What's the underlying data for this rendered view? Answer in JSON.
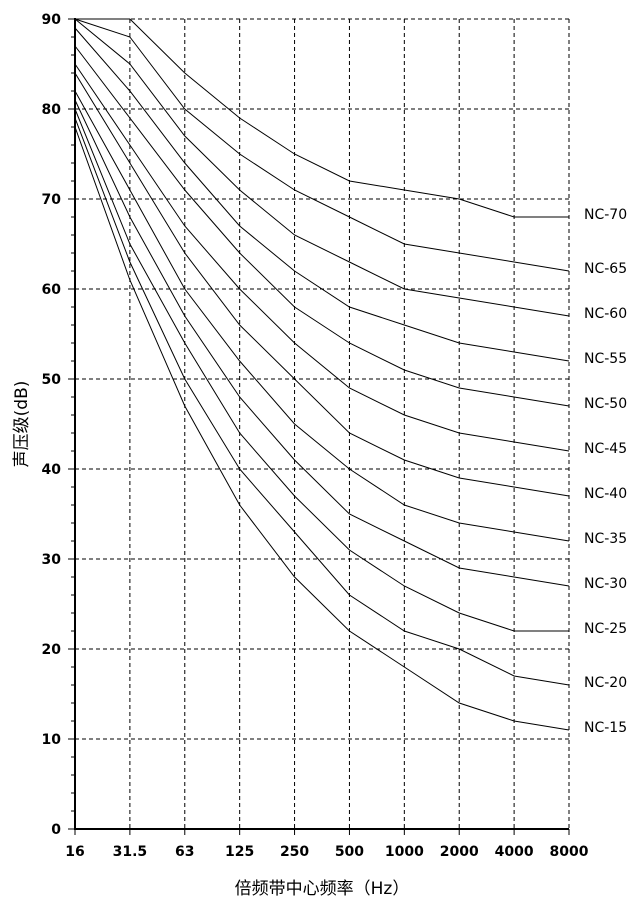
{
  "chart_data": {
    "type": "line",
    "xlabel": "倍频带中心频率（Hz）",
    "ylabel": "声压级(dB)",
    "categories": [
      "16",
      "31.5",
      "63",
      "125",
      "250",
      "500",
      "1000",
      "2000",
      "4000",
      "8000"
    ],
    "ylim": [
      0,
      90
    ],
    "yticks": [
      0,
      10,
      20,
      30,
      40,
      50,
      60,
      70,
      80,
      90
    ],
    "grid": true,
    "series": [
      {
        "name": "NC-70",
        "values": [
          90,
          90,
          84,
          79,
          75,
          72,
          71,
          70,
          68,
          68
        ]
      },
      {
        "name": "NC-65",
        "values": [
          90,
          88,
          80,
          75,
          71,
          68,
          65,
          64,
          63,
          62
        ]
      },
      {
        "name": "NC-60",
        "values": [
          90,
          85,
          77,
          71,
          66,
          63,
          60,
          59,
          58,
          57
        ]
      },
      {
        "name": "NC-55",
        "values": [
          89,
          82,
          74,
          67,
          62,
          58,
          56,
          54,
          53,
          52
        ]
      },
      {
        "name": "NC-50",
        "values": [
          87,
          79,
          71,
          64,
          58,
          54,
          51,
          49,
          48,
          47
        ]
      },
      {
        "name": "NC-45",
        "values": [
          85,
          76,
          67,
          60,
          54,
          49,
          46,
          44,
          43,
          42
        ]
      },
      {
        "name": "NC-40",
        "values": [
          84,
          74,
          64,
          56,
          50,
          44,
          41,
          39,
          38,
          37
        ]
      },
      {
        "name": "NC-35",
        "values": [
          82,
          71,
          60,
          52,
          45,
          40,
          36,
          34,
          33,
          32
        ]
      },
      {
        "name": "NC-30",
        "values": [
          81,
          68,
          57,
          48,
          41,
          35,
          32,
          29,
          28,
          27
        ]
      },
      {
        "name": "NC-25",
        "values": [
          80,
          65,
          54,
          44,
          37,
          31,
          27,
          24,
          22,
          22
        ]
      },
      {
        "name": "NC-20",
        "values": [
          79,
          63,
          50,
          40,
          33,
          26,
          22,
          20,
          17,
          16
        ]
      },
      {
        "name": "NC-15",
        "values": [
          78,
          61,
          47,
          36,
          28,
          22,
          18,
          14,
          12,
          11
        ]
      }
    ]
  }
}
